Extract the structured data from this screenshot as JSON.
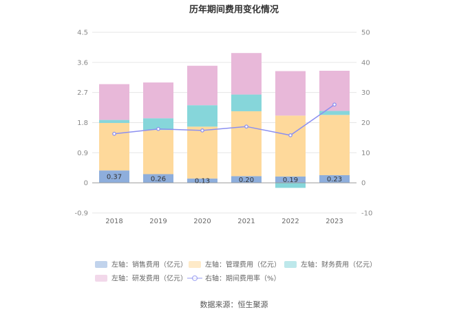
{
  "chart_data": {
    "type": "bar",
    "stacked": true,
    "title": "历年期间费用变化情况",
    "categories": [
      "2018",
      "2019",
      "2020",
      "2021",
      "2022",
      "2023"
    ],
    "left_axis": {
      "min": -0.9,
      "max": 4.5,
      "ticks": [
        "4.5",
        "3.6",
        "2.7",
        "1.8",
        "0.9",
        "0",
        "-0.9"
      ]
    },
    "right_axis": {
      "min": -10,
      "max": 50,
      "ticks": [
        "50",
        "40",
        "30",
        "20",
        "10",
        "0",
        "-10"
      ]
    },
    "series": [
      {
        "name": "左轴：销售费用（亿元）",
        "axis": "left",
        "kind": "bar",
        "color": "#8eaedc",
        "values": [
          0.37,
          0.26,
          0.13,
          0.2,
          0.19,
          0.23
        ],
        "labels": [
          "0.37",
          "0.26",
          "0.13",
          "0.20",
          "0.19",
          "0.23"
        ]
      },
      {
        "name": "左轴：管理费用（亿元）",
        "axis": "left",
        "kind": "bar",
        "color": "#fed99b",
        "values": [
          1.42,
          1.32,
          1.55,
          1.94,
          1.82,
          1.8
        ]
      },
      {
        "name": "左轴：财务费用（亿元）",
        "axis": "left",
        "kind": "bar",
        "color": "#86d6da",
        "values": [
          0.09,
          0.35,
          0.64,
          0.5,
          -0.15,
          0.12
        ]
      },
      {
        "name": "左轴：研发费用（亿元）",
        "axis": "left",
        "kind": "bar",
        "color": "#e8b8d9",
        "values": [
          1.07,
          1.07,
          1.18,
          1.24,
          1.33,
          1.2
        ]
      },
      {
        "name": "右轴：期间费用率（%）",
        "axis": "right",
        "kind": "line",
        "color": "#8b8ff0",
        "values": [
          16.3,
          17.9,
          17.4,
          18.7,
          15.8,
          26.0
        ]
      }
    ],
    "grid": true,
    "legend_position": "bottom"
  },
  "source": "数据来源：恒生聚源"
}
